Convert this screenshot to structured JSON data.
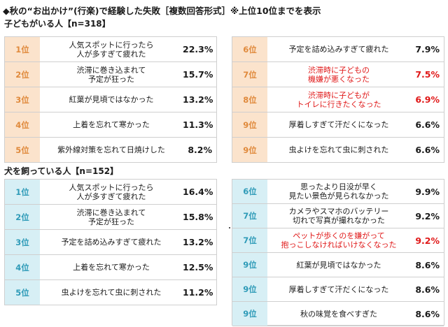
{
  "title": "◆秋の“お出かけ”(行楽)で経験した失敗［複数回答形式］※上位10位までを表示",
  "colors": {
    "rank_bg_children": "#fbe3cc",
    "rank_bg_dog": "#d7eff5",
    "highlight_text": "#e01818",
    "rank_text_children": "#e08a3c",
    "rank_text_dog": "#2f9bb8"
  },
  "chart_data": [
    {
      "type": "table",
      "title": "子どもがいる人【n=318】",
      "rows": [
        {
          "rank": "1位",
          "label": "人気スポットに行ったら\n人が多すぎて疲れた",
          "value": "22.3%",
          "highlight": false
        },
        {
          "rank": "2位",
          "label": "渋滞に巻き込まれて\n予定が狂った",
          "value": "15.7%",
          "highlight": false
        },
        {
          "rank": "3位",
          "label": "紅葉が見頃ではなかった",
          "value": "13.2%",
          "highlight": false
        },
        {
          "rank": "4位",
          "label": "上着を忘れて寒かった",
          "value": "11.3%",
          "highlight": false
        },
        {
          "rank": "5位",
          "label": "紫外線対策を忘れて日焼けした",
          "value": "8.2%",
          "highlight": false
        },
        {
          "rank": "6位",
          "label": "予定を詰め込みすぎて疲れた",
          "value": "7.9%",
          "highlight": false
        },
        {
          "rank": "7位",
          "label": "渋滞時に子どもの\n機嫌が悪くなった",
          "value": "7.5%",
          "highlight": true
        },
        {
          "rank": "8位",
          "label": "渋滞時に子どもが\nトイレに行きたくなった",
          "value": "6.9%",
          "highlight": true
        },
        {
          "rank": "9位",
          "label": "厚着しすぎて汗だくになった",
          "value": "6.6%",
          "highlight": false
        },
        {
          "rank": "9位",
          "label": "虫よけを忘れて虫に刺された",
          "value": "6.6%",
          "highlight": false
        }
      ]
    },
    {
      "type": "table",
      "title": "犬を飼っている人【n=152】",
      "rows": [
        {
          "rank": "1位",
          "label": "人気スポットに行ったら\n人が多すぎて疲れた",
          "value": "16.4%",
          "highlight": false
        },
        {
          "rank": "2位",
          "label": "渋滞に巻き込まれて\n予定が狂った",
          "value": "15.8%",
          "highlight": false
        },
        {
          "rank": "3位",
          "label": "予定を詰め込みすぎて疲れた",
          "value": "13.2%",
          "highlight": false
        },
        {
          "rank": "4位",
          "label": "上着を忘れて寒かった",
          "value": "12.5%",
          "highlight": false
        },
        {
          "rank": "5位",
          "label": "虫よけを忘れて虫に刺された",
          "value": "11.2%",
          "highlight": false
        },
        {
          "rank": "6位",
          "label": "思ったより日没が早く\n見たい景色が見られなかった",
          "value": "9.9%",
          "highlight": false
        },
        {
          "rank": "7位",
          "label": "カメラやスマホのバッテリー\n切れで写真が撮れなかった",
          "value": "9.2%",
          "highlight": false
        },
        {
          "rank": "7位",
          "label": "ペットが歩くのを嫌がって\n抱っこしなければいけなくなった",
          "value": "9.2%",
          "highlight": true
        },
        {
          "rank": "9位",
          "label": "紅葉が見頃ではなかった",
          "value": "8.6%",
          "highlight": false
        },
        {
          "rank": "9位",
          "label": "厚着しすぎて汗だくになった",
          "value": "8.6%",
          "highlight": false
        },
        {
          "rank": "9位",
          "label": "秋の味覚を食べすぎた",
          "value": "8.6%",
          "highlight": false
        }
      ]
    }
  ]
}
